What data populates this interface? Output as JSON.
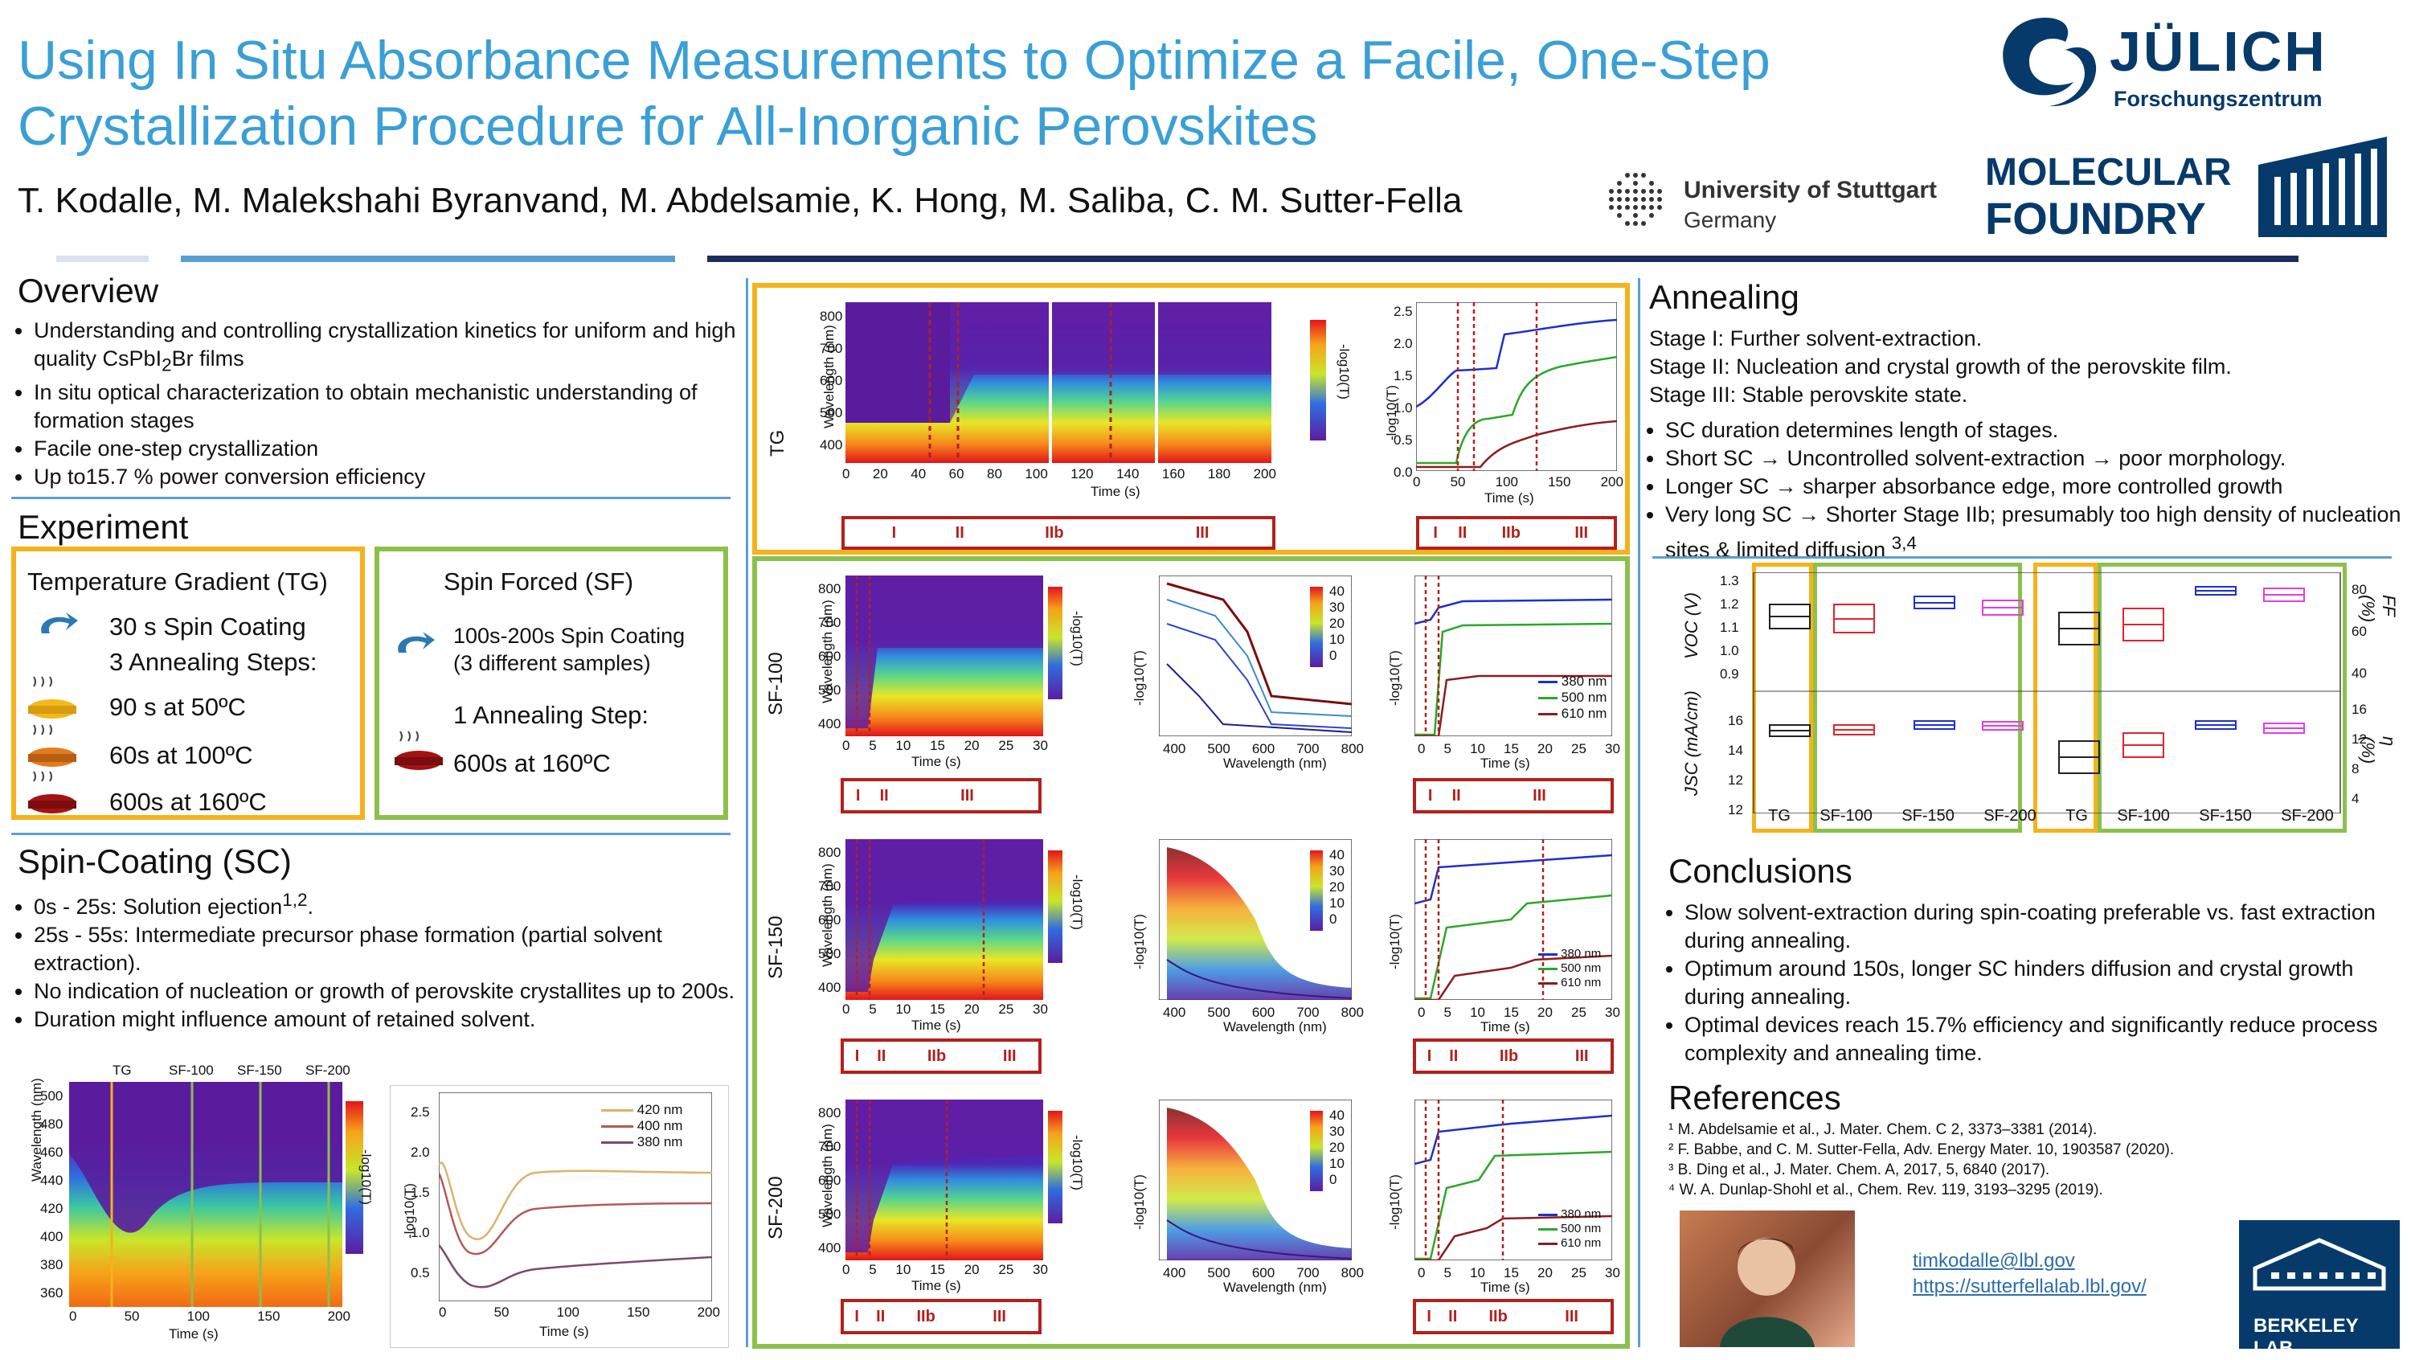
{
  "header": {
    "title_line1": "Using In Situ Absorbance Measurements to Optimize a Facile, One-Step",
    "title_line2": "Crystallization Procedure for All-Inorganic Perovskites",
    "authors": "T. Kodalle, M. Malekshahi Byranvand, M. Abdelsamie, K. Hong, M. Saliba, C. M. Sutter-Fella",
    "logo_julich_name": "JÜLICH",
    "logo_julich_sub": "Forschungszentrum",
    "logo_stuttgart_name": "University of Stuttgart",
    "logo_stuttgart_sub": "Germany",
    "logo_foundry_1": "MOLECULAR",
    "logo_foundry_2": "FOUNDRY",
    "logo_berkeley": "BERKELEY LAB"
  },
  "overview": {
    "title": "Overview",
    "bullets": [
      "Understanding and controlling crystallization kinetics for uniform and high quality CsPbI₂Br films",
      "In situ optical characterization to obtain mechanistic understanding of formation stages",
      "Facile one-step crystallization",
      "Up to15.7 % power conversion efficiency"
    ]
  },
  "experiment": {
    "title": "Experiment",
    "tg_title": "Temperature Gradient (TG)",
    "tg_spin": "30 s Spin Coating",
    "tg_steps": "3 Annealing Steps:",
    "tg_step1": "90 s at 50ºC",
    "tg_step2": "60s at 100ºC",
    "tg_step3": "600s at 160ºC",
    "sf_title": "Spin Forced (SF)",
    "sf_spin": "100s-200s Spin Coating",
    "sf_samples": "(3 different samples)",
    "sf_step": "1 Annealing Step:",
    "sf_step1": "600s at 160ºC"
  },
  "spincoating": {
    "title": "Spin-Coating (SC)",
    "bullets": [
      "0s - 25s: Solution ejection¹˒².",
      "25s - 55s: Intermediate precursor phase formation (partial solvent extraction).",
      "No indication of nucleation or growth of perovskite crystallites up to 200s.",
      "Duration might influence amount of retained solvent."
    ],
    "markers": [
      "TG",
      "SF-100",
      "SF-150",
      "SF-200"
    ],
    "heatmap_ylabel": "Wavelength (nm)",
    "heatmap_xlabel": "Time (s)",
    "heatmap_yticks": [
      "500",
      "480",
      "460",
      "440",
      "420",
      "400",
      "380",
      "360"
    ],
    "heatmap_xticks": [
      "0",
      "50",
      "100",
      "150",
      "200"
    ],
    "colorbar_label": "-log10(T)",
    "line_ylabel": "-log10(T)",
    "line_xlabel": "Time (s)",
    "line_yticks": [
      "2.5",
      "2.0",
      "1.5",
      "1.0",
      "0.5",
      "0.0"
    ],
    "line_xticks": [
      "0",
      "50",
      "100",
      "150",
      "200"
    ],
    "legend": [
      "420 nm",
      "400 nm",
      "380 nm"
    ]
  },
  "panels": {
    "rows": [
      {
        "label": "TG",
        "stages": [
          "I",
          "II",
          "IIb",
          "III"
        ]
      },
      {
        "label": "SF-100",
        "stages": [
          "I",
          "II",
          "III"
        ]
      },
      {
        "label": "SF-150",
        "stages": [
          "I",
          "II",
          "IIb",
          "III"
        ]
      },
      {
        "label": "SF-200",
        "stages": [
          "I",
          "II",
          "IIb",
          "III"
        ]
      }
    ],
    "tg_stages_right": [
      "I",
      "II",
      "IIb",
      "III"
    ],
    "sf100_stages_right": [
      "I",
      "II",
      "III"
    ],
    "wavelength_label": "Wavelength (nm)",
    "time_label": "Time (s)",
    "absorb_label": "-log10(T)",
    "legend": [
      "380 nm",
      "500 nm",
      "610 nm"
    ],
    "time_legend_title": "Time (s)",
    "time_legend_ticks": [
      "40",
      "30",
      "20",
      "10",
      "0"
    ],
    "tg_xticks": [
      "0",
      "20",
      "40",
      "60",
      "80",
      "100",
      "120",
      "140",
      "160",
      "180",
      "200"
    ],
    "sf_xticks": [
      "0",
      "5",
      "10",
      "15",
      "20",
      "25",
      "30"
    ],
    "wl_yticks": [
      "800",
      "700",
      "600",
      "500",
      "400"
    ],
    "wl_xticks": [
      "400",
      "500",
      "600",
      "700",
      "800"
    ],
    "abs_yticks": [
      "2.5",
      "2.0",
      "1.5",
      "1.0",
      "0.5",
      "0.0"
    ],
    "tg_right_xticks": [
      "0",
      "50",
      "100",
      "150",
      "200"
    ]
  },
  "annealing": {
    "title": "Annealing",
    "stage1": "Stage I: Further solvent-extraction.",
    "stage2": "Stage II: Nucleation and crystal growth of the perovskite film.",
    "stage3": "Stage III: Stable perovskite state.",
    "bullets": [
      "SC duration determines length of stages.",
      "Short SC → Uncontrolled solvent-extraction → poor morphology.",
      "Longer SC → sharper absorbance edge, more controlled growth",
      "Very long SC → Shorter Stage IIb; presumably too high density of nucleation sites & limited diffusion ³˒⁴"
    ]
  },
  "boxplot": {
    "voc_label": "VOC (V)",
    "jsc_label": "JSC (mA/cm)",
    "ff_label": "FF (%)",
    "eta_label": "η (%)",
    "voc_ticks": [
      "1.3",
      "1.2",
      "1.1",
      "1.0",
      "0.9"
    ],
    "jsc_ticks": [
      "16",
      "14",
      "12",
      "12"
    ],
    "ff_ticks": [
      "80",
      "60",
      "40"
    ],
    "eta_ticks": [
      "16",
      "12",
      "8",
      "4"
    ],
    "categories": [
      "TG",
      "SF-100",
      "SF-150",
      "SF-200",
      "TG",
      "SF-100",
      "SF-150",
      "SF-200"
    ],
    "colors": {
      "TG": "#222222",
      "SF-100": "#e0242b",
      "SF-150": "#1c2fd1",
      "SF-200": "#e23ee0"
    }
  },
  "conclusions": {
    "title": "Conclusions",
    "bullets": [
      "Slow solvent-extraction during spin-coating preferable vs. fast extraction during annealing.",
      "Optimum around 150s, longer SC hinders diffusion and crystal growth during annealing.",
      "Optimal devices reach 15.7% efficiency and significantly reduce process complexity and annealing time."
    ]
  },
  "references": {
    "title": "References",
    "items": [
      "¹ M. Abdelsamie et al., J. Mater. Chem. C 2, 3373–3381 (2014).",
      "² F. Babbe, and C. M. Sutter-Fella, Adv. Energy Mater. 10, 1903587 (2020).",
      "³ B. Ding et al., J. Mater. Chem. A, 2017, 5, 6840 (2017).",
      "⁴ W. A. Dunlap-Shohl et al., Chem. Rev. 119, 3193–3295 (2019)."
    ]
  },
  "contact": {
    "email": "timkodalle@lbl.gov",
    "url": "https://sutterfellalab.lbl.gov/"
  }
}
